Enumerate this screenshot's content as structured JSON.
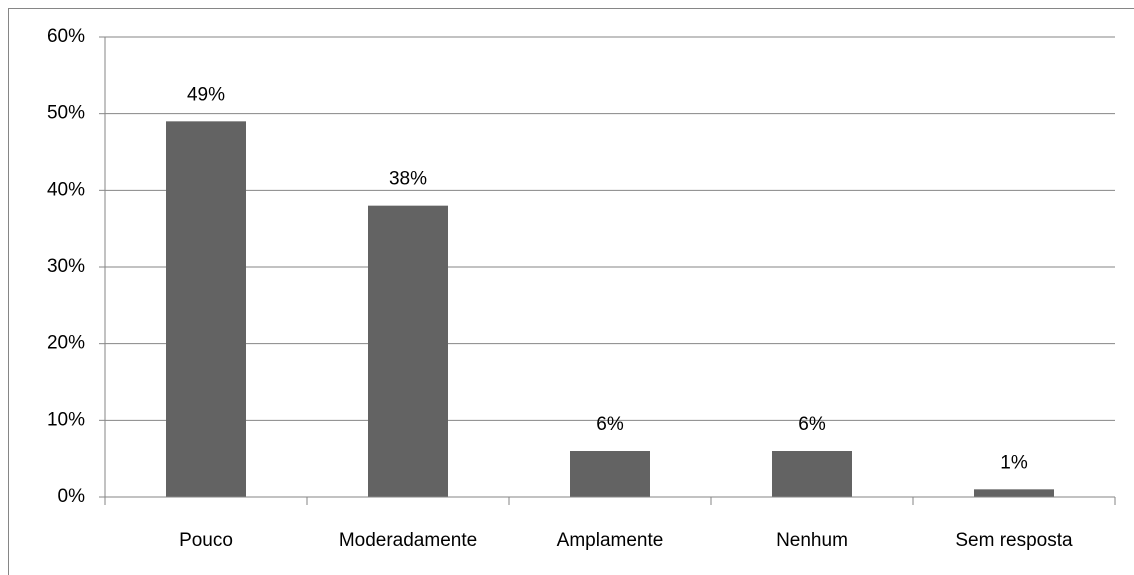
{
  "chart_data": {
    "type": "bar",
    "categories": [
      "Pouco",
      "Moderadamente",
      "Amplamente",
      "Nenhum",
      "Sem resposta"
    ],
    "values": [
      49,
      38,
      6,
      6,
      1
    ],
    "value_labels": [
      "49%",
      "38%",
      "6%",
      "6%",
      "1%"
    ],
    "color": "#636363",
    "ylim": [
      0,
      60
    ],
    "yticks": [
      {
        "value": 0,
        "label": "0%"
      },
      {
        "value": 10,
        "label": "10%"
      },
      {
        "value": 20,
        "label": "20%"
      },
      {
        "value": 30,
        "label": "30%"
      },
      {
        "value": 40,
        "label": "40%"
      },
      {
        "value": 50,
        "label": "50%"
      },
      {
        "value": 60,
        "label": "60%"
      }
    ],
    "grid": true
  }
}
